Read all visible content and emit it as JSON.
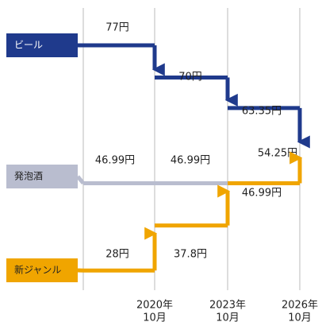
{
  "chart_data": {
    "type": "step",
    "x_labels": [
      null,
      {
        "year": "2020年",
        "month": "10月"
      },
      {
        "year": "2023年",
        "month": "10月"
      },
      {
        "year": "2026年",
        "month": "10月"
      }
    ],
    "ylim": [
      20,
      82
    ],
    "series": [
      {
        "name": "ビール",
        "color": "#1f3a8c",
        "values": [
          77,
          70,
          63.35,
          54.25
        ],
        "value_labels": [
          "77円",
          "70円",
          "63.35円",
          "54.25円"
        ]
      },
      {
        "name": "発泡酒",
        "color": "#b9bdcf",
        "values": [
          46.99,
          46.99,
          46.99,
          54.25
        ],
        "value_labels": [
          "46.99円",
          "46.99円",
          null,
          null
        ]
      },
      {
        "name": "新ジャンル",
        "color": "#f0a500",
        "values": [
          28,
          37.8,
          46.99,
          54.25
        ],
        "value_labels": [
          "28円",
          "37.8円",
          "46.99円",
          null
        ]
      }
    ]
  }
}
